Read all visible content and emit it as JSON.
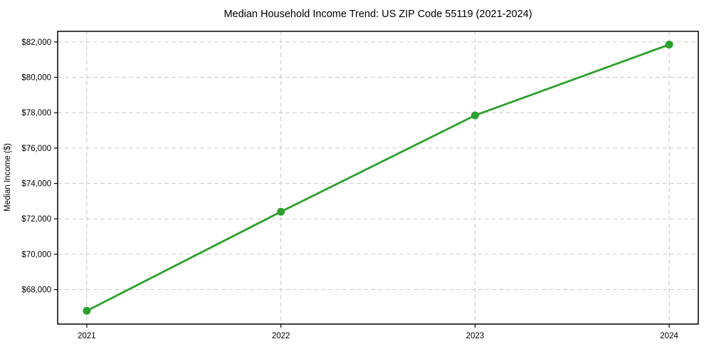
{
  "chart_data": {
    "type": "line",
    "title": "Median Household Income Trend: US ZIP Code 55119 (2021-2024)",
    "xlabel": "",
    "ylabel": "Median Income ($)",
    "x": [
      2021,
      2022,
      2023,
      2024
    ],
    "series": [
      {
        "name": "Median Household Income",
        "values": [
          66800,
          72400,
          77850,
          81850
        ]
      }
    ],
    "xticks": [
      {
        "value": 2021,
        "label": "2021"
      },
      {
        "value": 2022,
        "label": "2022"
      },
      {
        "value": 2023,
        "label": "2023"
      },
      {
        "value": 2024,
        "label": "2024"
      }
    ],
    "yticks": [
      {
        "value": 68000,
        "label": "$68,000"
      },
      {
        "value": 70000,
        "label": "$70,000"
      },
      {
        "value": 72000,
        "label": "$72,000"
      },
      {
        "value": 74000,
        "label": "$74,000"
      },
      {
        "value": 76000,
        "label": "$76,000"
      },
      {
        "value": 78000,
        "label": "$78,000"
      },
      {
        "value": 80000,
        "label": "$80,000"
      },
      {
        "value": 82000,
        "label": "$82,000"
      }
    ],
    "xlim": [
      2020.85,
      2024.15
    ],
    "ylim": [
      66050,
      82600
    ],
    "grid": true,
    "grid_style": "dashed",
    "legend_position": "none",
    "colors": {
      "line": "#2ca02c",
      "marker": "#2ca02c",
      "grid": "#c9c9c9",
      "spine": "#000000",
      "text": "#000000",
      "background": "#ffffff"
    },
    "marker": "circle"
  }
}
